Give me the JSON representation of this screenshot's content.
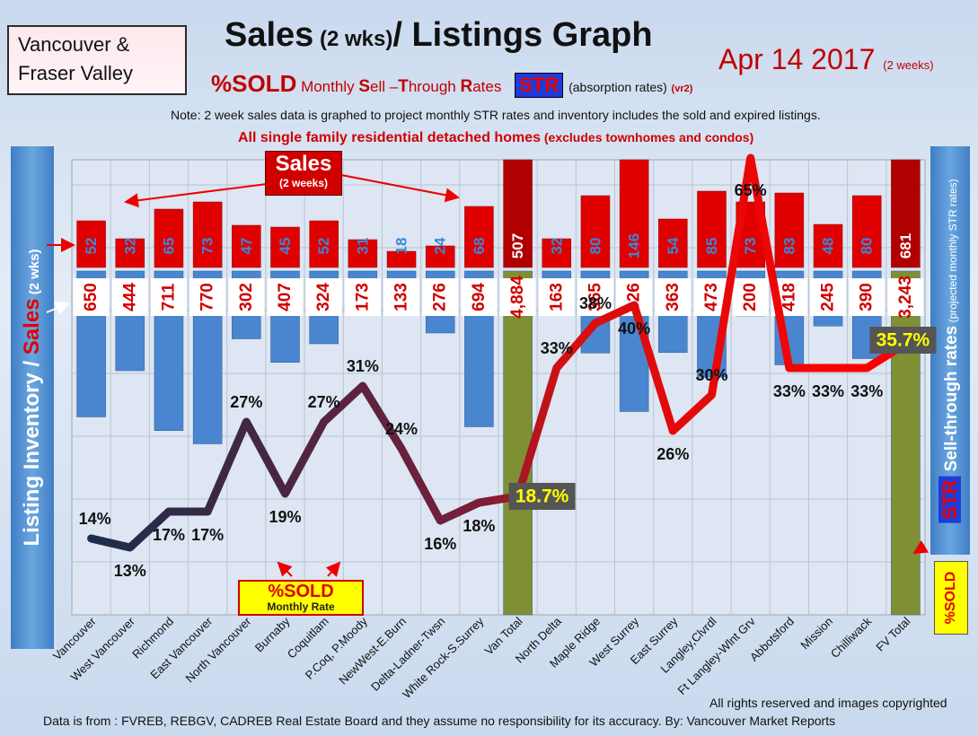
{
  "brand": {
    "line1": "Vancouver  &",
    "line2": "Fraser Valley"
  },
  "header": {
    "title_main": "Sales",
    "title_small": " (2 wks)",
    "title_rest": "/ Listings Graph",
    "date": "Apr 14 2017",
    "date_note": "(2 weeks)",
    "sold_label": "%SOLD",
    "sold_desc_1": " Monthly ",
    "sold_desc_S": "S",
    "sold_desc_2": "ell –",
    "sold_desc_T": "T",
    "sold_desc_3": "hrough ",
    "sold_desc_R": "R",
    "sold_desc_4": "ates",
    "str_badge": "STR",
    "str_desc": "(absorption rates)",
    "version": "(vr2)",
    "note": "Note: 2 week sales data is graphed to project monthly STR rates and inventory includes the sold and expired listings.",
    "scope": "All single family residential detached homes",
    "scope_small": " (excludes townhomes and condos)"
  },
  "annotations": {
    "sales_box": "Sales",
    "sales_box_sub": "(2 weeks)",
    "pct_box": "%SOLD",
    "pct_box_sub": "Monthly Rate"
  },
  "axis_labels": {
    "left_white": "Listing Inventory / ",
    "left_red": "Sales",
    "left_small": " (2  wks)",
    "right_str": "STR",
    "right_text": " Sell-through rates",
    "right_small": " (projected monthly STR rates)",
    "bottom_sold": "%SOLD"
  },
  "footer": {
    "rights": "All rights reserved and  images copyrighted",
    "source": "Data is from : FVREB, REBGV, CADREB Real Estate Board and they assume no responsibility for its accuracy. By: Vancouver Market Reports"
  },
  "colors": {
    "sales_bar": "#e00000",
    "inventory_bar": "#4a86d0",
    "total_bar_sales": "#b00000",
    "total_bar_inventory": "#7f8f33",
    "line_start": "#1c2e4a",
    "line_end": "#ff0000"
  },
  "chart_data": {
    "type": "bar",
    "categories": [
      "Vancouver",
      "West Vancouver",
      "Richmond",
      "East Vancouver",
      "North Vancouver",
      "Burnaby",
      "Coquitlam",
      "P.Coq, P.Moody",
      "NewWest-E.Burn",
      "Delta-Ladner-Twsn",
      "White Rock-S.Surrey",
      "Van Total",
      "North Delta",
      "Maple Ridge",
      "West Surrey",
      "East Surrey",
      "Langley,Clvrdl",
      "Ft Langley-Wlnt Grv",
      "Abbotsford",
      "Mission",
      "Chilliwack",
      "FV Total"
    ],
    "series": [
      {
        "name": "Sales",
        "values": [
          52,
          32,
          65,
          73,
          47,
          45,
          52,
          31,
          18,
          24,
          68,
          507,
          32,
          80,
          146,
          54,
          85,
          73,
          83,
          48,
          80,
          681
        ]
      },
      {
        "name": "Listing Inventory",
        "values": [
          650,
          444,
          711,
          770,
          302,
          407,
          324,
          173,
          133,
          276,
          694,
          4884,
          163,
          365,
          626,
          363,
          473,
          200,
          418,
          245,
          390,
          3243
        ]
      },
      {
        "name": "%SOLD",
        "values": [
          14,
          13,
          17,
          17,
          27,
          19,
          27,
          31,
          24,
          16,
          18,
          18.7,
          33,
          38,
          40,
          26,
          30,
          65,
          33,
          33,
          33,
          35.7
        ]
      }
    ],
    "percent_labels": [
      "14%",
      "13%",
      "17%",
      "17%",
      "27%",
      "19%",
      "27%",
      "31%",
      "24%",
      "16%",
      "18%",
      "18.7%",
      "33%",
      "38%",
      "40%",
      "26%",
      "30%",
      "65%",
      "33%",
      "33%",
      "33%",
      "35.7%"
    ],
    "inventory_labels": [
      "650",
      "444",
      "711",
      "770",
      "302",
      "407",
      "324",
      "173",
      "133",
      "276",
      "694",
      "4,884",
      "163",
      "365",
      "626",
      "363",
      "473",
      "200",
      "418",
      "245",
      "390",
      "3,243"
    ],
    "title": "Sales (2 wks)/ Listings Graph",
    "ylabel": "Listing Inventory / Sales (2  wks)",
    "y2label": "STR Sell-through rates (projected monthly STR rates)"
  }
}
